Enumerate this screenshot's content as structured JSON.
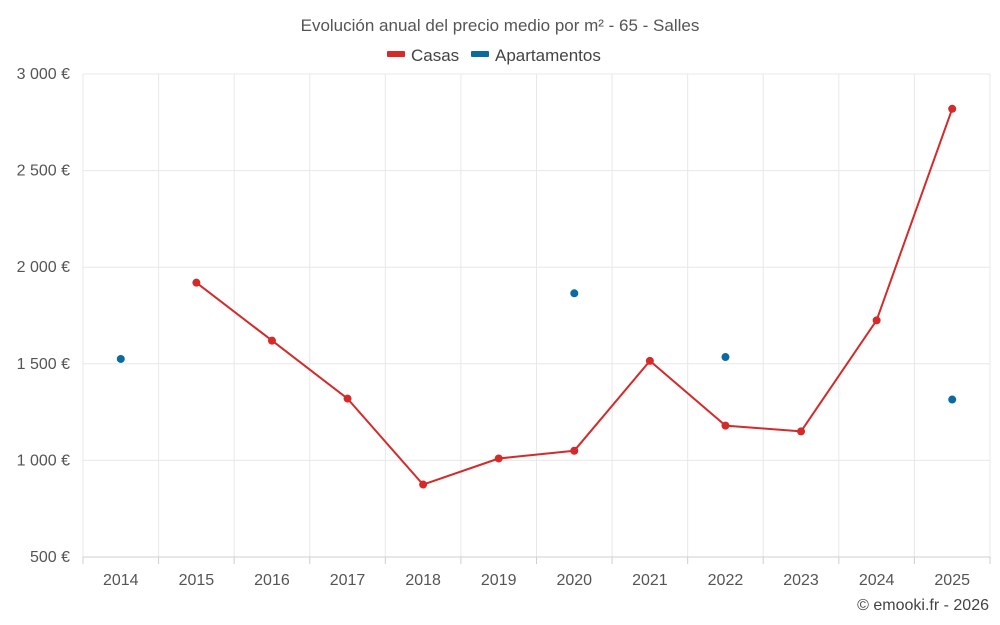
{
  "chart_data": {
    "type": "line",
    "title": "Evolución anual del precio medio por m² - 65 - Salles",
    "categories": [
      "2014",
      "2015",
      "2016",
      "2017",
      "2018",
      "2019",
      "2020",
      "2021",
      "2022",
      "2023",
      "2024",
      "2025"
    ],
    "y_ticks": [
      "500 €",
      "1 000 €",
      "1 500 €",
      "2 000 €",
      "2 500 €",
      "3 000 €"
    ],
    "y_tick_values": [
      500,
      1000,
      1500,
      2000,
      2500,
      3000
    ],
    "ylim": [
      500,
      3000
    ],
    "grid": true,
    "legend_position": "top-center",
    "series": [
      {
        "name": "Casas",
        "color": "#d42a2a",
        "style": "line-markers",
        "values": [
          null,
          1920,
          1620,
          1320,
          875,
          1010,
          1050,
          1515,
          1180,
          1150,
          1725,
          2820
        ]
      },
      {
        "name": "Apartamentos",
        "color": "#0b6aa2",
        "style": "markers",
        "values": [
          1525,
          null,
          null,
          null,
          null,
          null,
          1865,
          null,
          1535,
          null,
          null,
          1315
        ]
      }
    ]
  },
  "credit": "© emooki.fr - 2026"
}
